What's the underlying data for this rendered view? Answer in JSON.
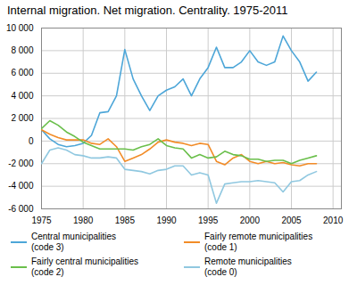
{
  "chart_data": {
    "type": "line",
    "title": "Internal migration. Net migration. Centrality. 1975-2011",
    "x": [
      1975,
      1976,
      1977,
      1978,
      1979,
      1980,
      1981,
      1982,
      1983,
      1984,
      1985,
      1986,
      1987,
      1988,
      1989,
      1990,
      1991,
      1992,
      1993,
      1994,
      1995,
      1996,
      1997,
      1998,
      1999,
      2000,
      2001,
      2002,
      2003,
      2004,
      2005,
      2006,
      2007,
      2008
    ],
    "series": [
      {
        "name": "Central municipalities\n(code 3)",
        "color": "#4da6d8",
        "values": [
          1000,
          200,
          -300,
          -500,
          -400,
          -200,
          500,
          2500,
          2600,
          4000,
          8100,
          5500,
          4000,
          2700,
          4000,
          4500,
          4800,
          5500,
          4000,
          5500,
          6500,
          8300,
          6500,
          6500,
          7000,
          8000,
          7000,
          6700,
          7000,
          9300,
          8000,
          7000,
          5300,
          6100
        ]
      },
      {
        "name": "Fairly remote municipalities\n(code 1)",
        "color": "#f28c28",
        "values": [
          1000,
          600,
          300,
          100,
          100,
          100,
          -200,
          -300,
          200,
          -500,
          -1800,
          -1500,
          -1200,
          -700,
          -100,
          100,
          -100,
          -200,
          -400,
          -200,
          -300,
          -1800,
          -2100,
          -1500,
          -1200,
          -1800,
          -2000,
          -1800,
          -2000,
          -1900,
          -2100,
          -2200,
          -2000,
          -2000
        ]
      },
      {
        "name": "Fairly central municipalities\n(code 2)",
        "color": "#6abf4b",
        "values": [
          1100,
          1800,
          1400,
          800,
          400,
          -100,
          -400,
          -700,
          -700,
          -700,
          -700,
          -800,
          -500,
          -300,
          200,
          -400,
          -600,
          -700,
          -1500,
          -1200,
          -1500,
          -1400,
          -900,
          -1200,
          -1300,
          -1600,
          -1600,
          -1800,
          -1700,
          -1700,
          -2000,
          -1700,
          -1500,
          -1300
        ]
      },
      {
        "name": "Remote municipalities\n(code 0)",
        "color": "#90c8e0",
        "values": [
          -2000,
          -800,
          -600,
          -800,
          -1200,
          -1300,
          -1500,
          -1500,
          -1400,
          -1500,
          -2500,
          -2600,
          -2700,
          -2900,
          -2600,
          -2500,
          -2200,
          -2200,
          -3000,
          -2800,
          -3000,
          -5500,
          -3800,
          -3700,
          -3600,
          -3600,
          -3500,
          -3600,
          -3700,
          -4500,
          -3600,
          -3500,
          -3000,
          -2700
        ]
      }
    ],
    "xlim": [
      1975,
      2011
    ],
    "xticks": [
      1975,
      1980,
      1985,
      1990,
      1995,
      2000,
      2005,
      2010
    ],
    "ylim": [
      -6000,
      10000
    ],
    "yticks": [
      {
        "value": -6000,
        "label": "-6 000"
      },
      {
        "value": -4000,
        "label": "-4 000"
      },
      {
        "value": -2000,
        "label": "-2 000"
      },
      0,
      {
        "value": 2000,
        "label": "2 000"
      },
      {
        "value": 4000,
        "label": "4 000"
      },
      {
        "value": 6000,
        "label": "6 000"
      },
      {
        "value": 8000,
        "label": "8 000"
      },
      {
        "value": 10000,
        "label": "10 000"
      }
    ],
    "grid": true,
    "legend": "bottom"
  }
}
